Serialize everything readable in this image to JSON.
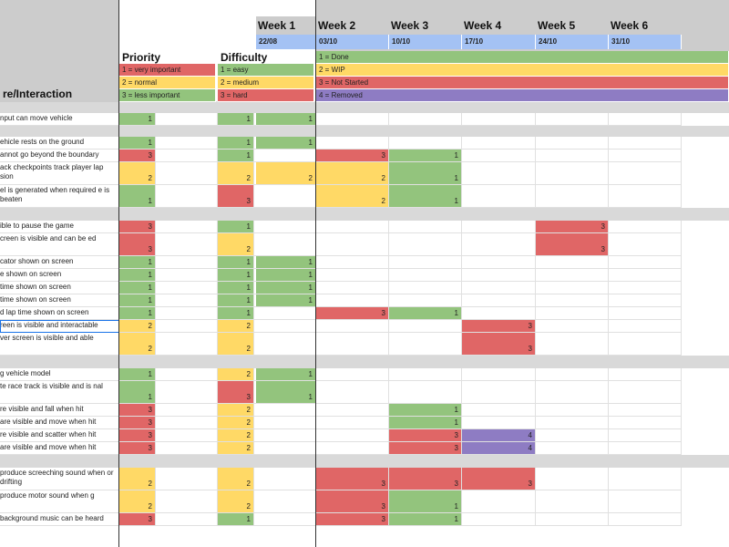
{
  "headers": {
    "feature": "re/Interaction",
    "priority": "Priority",
    "difficulty": "Difficulty",
    "weeks": [
      "Week 1",
      "Week 2",
      "Week 3",
      "Week 4",
      "Week 5",
      "Week 6"
    ],
    "dates": [
      "22/08",
      "03/10",
      "10/10",
      "17/10",
      "24/10",
      "31/10"
    ]
  },
  "priority_legend": [
    "1 = very important",
    "2 = normal",
    "3 = less important"
  ],
  "difficulty_legend": [
    "1 = easy",
    "2 = medium",
    "3 = hard"
  ],
  "status_legend": [
    "1 = Done",
    "2 = WIP",
    "3 = Not Started",
    "4 = Removed"
  ],
  "colors": {
    "red": "#e06666",
    "yellow": "#ffd966",
    "green": "#93c47d",
    "purple": "#8e7cc3",
    "date_blue": "#a4c2f4",
    "header_gray": "#cccccc",
    "section_gray": "#d9d9d9"
  },
  "rows": [
    {
      "gap": true
    },
    {
      "feature": "nput can move vehicle",
      "priority": "1",
      "difficulty": "1",
      "weeks": [
        "1",
        "",
        "",
        "",
        "",
        ""
      ]
    },
    {
      "gap": true
    },
    {
      "feature": "ehicle rests on the ground",
      "priority": "1",
      "difficulty": "1",
      "weeks": [
        "1",
        "",
        "",
        "",
        "",
        ""
      ]
    },
    {
      "feature": "annot go beyond the boundary",
      "priority": "3",
      "difficulty": "1",
      "weeks": [
        "",
        "3",
        "1",
        "",
        "",
        ""
      ]
    },
    {
      "feature": "ack checkpoints track player lap sion",
      "priority": "2",
      "difficulty": "2",
      "weeks": [
        "2",
        "2",
        "1",
        "",
        "",
        ""
      ]
    },
    {
      "feature": "el is generated when required e is beaten",
      "priority": "1",
      "difficulty": "3",
      "weeks": [
        "",
        "2",
        "1",
        "",
        "",
        ""
      ]
    },
    {
      "gap": true
    },
    {
      "feature": "ible to pause the game",
      "priority": "3",
      "difficulty": "1",
      "weeks": [
        "",
        "",
        "",
        "",
        "3",
        ""
      ]
    },
    {
      "feature": "creen is visible and can be ed",
      "priority": "3",
      "difficulty": "2",
      "weeks": [
        "",
        "",
        "",
        "",
        "3",
        ""
      ]
    },
    {
      "feature": "cator shown on screen",
      "priority": "1",
      "difficulty": "1",
      "weeks": [
        "1",
        "",
        "",
        "",
        "",
        ""
      ]
    },
    {
      "feature": "e shown on screen",
      "priority": "1",
      "difficulty": "1",
      "weeks": [
        "1",
        "",
        "",
        "",
        "",
        ""
      ]
    },
    {
      "feature": "time shown on screen",
      "priority": "1",
      "difficulty": "1",
      "weeks": [
        "1",
        "",
        "",
        "",
        "",
        ""
      ]
    },
    {
      "feature": "time shown on screen",
      "priority": "1",
      "difficulty": "1",
      "weeks": [
        "1",
        "",
        "",
        "",
        "",
        ""
      ]
    },
    {
      "feature": "d lap time shown on screen",
      "priority": "1",
      "difficulty": "1",
      "weeks": [
        "",
        "3",
        "1",
        "",
        "",
        ""
      ]
    },
    {
      "feature": "reen is visible and interactable",
      "priority": "2",
      "difficulty": "2",
      "weeks": [
        "",
        "",
        "",
        "3",
        "",
        ""
      ]
    },
    {
      "feature": "ver screen is visible and able",
      "priority": "2",
      "difficulty": "2",
      "weeks": [
        "",
        "",
        "",
        "3",
        "",
        ""
      ]
    },
    {
      "gap": true
    },
    {
      "feature": "g vehicle model",
      "priority": "1",
      "difficulty": "2",
      "weeks": [
        "1",
        "",
        "",
        "",
        "",
        ""
      ]
    },
    {
      "feature": "te race track is visible and is nal",
      "priority": "1",
      "difficulty": "3",
      "weeks": [
        "1",
        "",
        "",
        "",
        "",
        ""
      ]
    },
    {
      "feature": "re visible and fall when hit",
      "priority": "3",
      "difficulty": "2",
      "weeks": [
        "",
        "",
        "1",
        "",
        "",
        ""
      ]
    },
    {
      "feature": "are visible and move when hit",
      "priority": "3",
      "difficulty": "2",
      "weeks": [
        "",
        "",
        "1",
        "",
        "",
        ""
      ]
    },
    {
      "feature": "re visible and scatter when hit",
      "priority": "3",
      "difficulty": "2",
      "weeks": [
        "",
        "",
        "3",
        "4",
        "",
        ""
      ]
    },
    {
      "feature": "are visible and move when hit",
      "priority": "3",
      "difficulty": "2",
      "weeks": [
        "",
        "",
        "3",
        "4",
        "",
        ""
      ]
    },
    {
      "gap": true
    },
    {
      "feature": "produce screeching sound when or drifting",
      "priority": "2",
      "difficulty": "2",
      "weeks": [
        "",
        "3",
        "3",
        "3",
        "",
        ""
      ]
    },
    {
      "feature": "produce motor sound when g",
      "priority": "2",
      "difficulty": "2",
      "weeks": [
        "",
        "3",
        "1",
        "",
        "",
        ""
      ]
    },
    {
      "feature": "background music can be heard",
      "priority": "3",
      "difficulty": "1",
      "weeks": [
        "",
        "3",
        "1",
        "",
        "",
        ""
      ]
    }
  ]
}
